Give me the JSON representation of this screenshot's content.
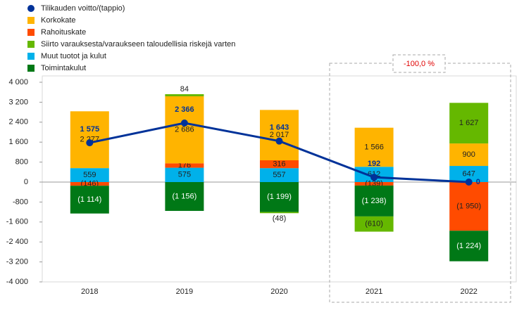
{
  "chart_data": {
    "type": "bar",
    "categories": [
      "2018",
      "2019",
      "2020",
      "2021",
      "2022"
    ],
    "line": {
      "name": "Tilikauden voitto/(tappio)",
      "color": "#003299",
      "values": [
        1575,
        2366,
        1643,
        192,
        0
      ],
      "value_labels": [
        "1 575",
        "2 366",
        "1 643",
        "192",
        "0"
      ]
    },
    "series": [
      {
        "name": "Korkokate",
        "color": "#ffb400",
        "values": [
          2277,
          2686,
          2017,
          1566,
          900
        ],
        "value_labels": [
          "2 277",
          "2 686",
          "2 017",
          "1 566",
          "900"
        ]
      },
      {
        "name": "Rahoituskate",
        "color": "#ff4b00",
        "values": [
          -146,
          176,
          316,
          -139,
          -1950
        ],
        "value_labels": [
          "(146)",
          "176",
          "316",
          "(139)",
          "(1 950)"
        ]
      },
      {
        "name": "Siirto varauksesta/varaukseen taloudellisia riskejä varten",
        "color": "#65b800",
        "values": [
          null,
          84,
          -48,
          -610,
          1627
        ],
        "value_labels": [
          null,
          "84",
          "(48)",
          "(610)",
          "1 627"
        ]
      },
      {
        "name": "Muut tuotot ja kulut",
        "color": "#00b1ea",
        "values": [
          559,
          575,
          557,
          612,
          647
        ],
        "value_labels": [
          "559",
          "575",
          "557",
          "612",
          "647"
        ]
      },
      {
        "name": "Toimintakulut",
        "color": "#007816",
        "values": [
          -1114,
          -1156,
          -1199,
          -1238,
          -1224
        ],
        "value_labels": [
          "(1 114)",
          "(1 156)",
          "(1 199)",
          "(1 238)",
          "(1 224)"
        ]
      }
    ],
    "annotation": "-100,0 %",
    "ylim": [
      -4000,
      4000
    ],
    "yticks": [
      {
        "value": -4000,
        "label": "-4 000"
      },
      {
        "value": -3200,
        "label": "-3 200"
      },
      {
        "value": -2400,
        "label": "-2 400"
      },
      {
        "value": -1600,
        "label": "-1 600"
      },
      -800,
      0,
      800,
      {
        "value": 1600,
        "label": "1 600"
      },
      {
        "value": 2400,
        "label": "2 400"
      },
      {
        "value": 3200,
        "label": "3 200"
      },
      {
        "value": 4000,
        "label": "4 000"
      }
    ]
  }
}
